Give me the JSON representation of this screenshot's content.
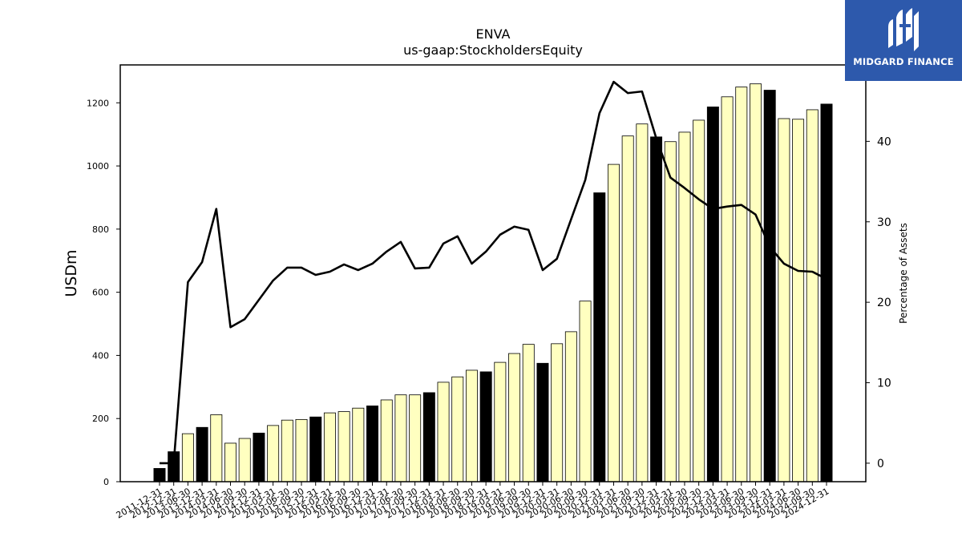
{
  "chart_data": {
    "type": "bar",
    "title": "ENVA",
    "subtitle": "us-gaap:StockholdersEquity",
    "ylabel": "USDm",
    "y2label": "Percentage of Assets",
    "ylim": [
      0,
      1320
    ],
    "y2lim": [
      -2.3,
      49.5
    ],
    "yticks": [
      0,
      200,
      400,
      600,
      800,
      1000,
      1200
    ],
    "y2ticks": [
      0,
      10,
      20,
      30,
      40
    ],
    "categories": [
      "2011-12-31",
      "2012-12-31",
      "2013-06-30",
      "2013-12-31",
      "2014-03-31",
      "2014-06-30",
      "2014-09-30",
      "2014-12-31",
      "2015-03-31",
      "2015-06-30",
      "2015-09-30",
      "2015-12-31",
      "2016-03-31",
      "2016-06-30",
      "2016-09-30",
      "2016-12-31",
      "2017-03-31",
      "2017-06-30",
      "2017-09-30",
      "2017-12-31",
      "2018-03-31",
      "2018-06-30",
      "2018-09-30",
      "2018-12-31",
      "2019-03-31",
      "2019-06-30",
      "2019-09-30",
      "2019-12-31",
      "2020-03-31",
      "2020-06-30",
      "2020-09-30",
      "2020-12-31",
      "2021-03-31",
      "2021-06-30",
      "2021-09-30",
      "2021-12-31",
      "2022-03-31",
      "2022-06-30",
      "2022-09-30",
      "2022-12-31",
      "2023-03-31",
      "2023-06-30",
      "2023-09-30",
      "2023-12-31",
      "2024-03-31",
      "2024-06-30",
      "2024-09-30",
      "2024-12-31"
    ],
    "series": [
      {
        "type": "bar",
        "values": [
          42,
          95,
          152,
          172,
          212,
          122,
          137,
          154,
          178,
          195,
          197,
          205,
          218,
          222,
          233,
          240,
          259,
          275,
          275,
          282,
          315,
          332,
          353,
          348,
          378,
          406,
          435,
          375,
          437,
          475,
          572,
          915,
          1005,
          1095,
          1133,
          1092,
          1077,
          1107,
          1145,
          1187,
          1219,
          1250,
          1260,
          1240,
          1150,
          1148,
          1178,
          1196
        ],
        "fill_pattern": [
          "black",
          "black",
          "light",
          "black",
          "light",
          "light",
          "light",
          "black",
          "light",
          "light",
          "light",
          "black",
          "light",
          "light",
          "light",
          "black",
          "light",
          "light",
          "light",
          "black",
          "light",
          "light",
          "light",
          "black",
          "light",
          "light",
          "light",
          "black",
          "light",
          "light",
          "light",
          "black",
          "light",
          "light",
          "light",
          "black",
          "light",
          "light",
          "light",
          "black",
          "light",
          "light",
          "light",
          "black",
          "light",
          "light",
          "light",
          "black"
        ],
        "colors": {
          "black": "#000000",
          "light": "#ffffc0"
        }
      },
      {
        "type": "line",
        "axis": "right",
        "values": [
          0,
          0,
          22.5,
          25,
          31.6,
          16.9,
          17.9,
          20.3,
          22.7,
          24.3,
          24.3,
          23.4,
          23.8,
          24.7,
          24,
          24.8,
          26.3,
          27.5,
          24.2,
          24.3,
          27.3,
          28.2,
          24.8,
          26.3,
          28.4,
          29.4,
          29,
          24,
          25.4,
          30.3,
          35.2,
          43.5,
          47.4,
          46,
          46.2,
          40.4,
          35.5,
          34.2,
          32.8,
          31.6,
          31.9,
          32.1,
          30.9,
          26.9,
          24.8,
          23.9,
          23.8,
          22.9
        ],
        "color": "#000000"
      }
    ],
    "grid": false,
    "legend": "none"
  },
  "logo": {
    "text": "MIDGARD FINANCE",
    "color": "#2d59ac"
  }
}
